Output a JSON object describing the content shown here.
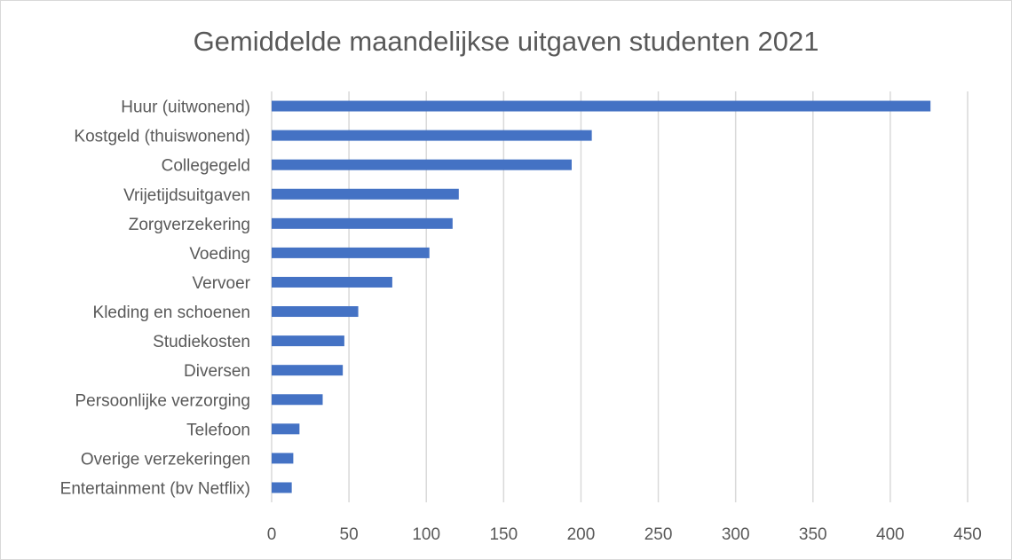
{
  "chart_data": {
    "type": "bar",
    "orientation": "horizontal",
    "title": "Gemiddelde maandelijkse uitgaven studenten 2021",
    "categories": [
      "Huur (uitwonend)",
      "Kostgeld (thuiswonend)",
      "Collegegeld",
      "Vrijetijdsuitgaven",
      "Zorgverzekering",
      "Voeding",
      "Vervoer",
      "Kleding en schoenen",
      "Studiekosten",
      "Diversen",
      "Persoonlijke verzorging",
      "Telefoon",
      "Overige verzekeringen",
      "Entertainment (bv Netflix)"
    ],
    "values": [
      426,
      207,
      194,
      121,
      117,
      102,
      78,
      56,
      47,
      46,
      33,
      18,
      14,
      13
    ],
    "xlim": [
      0,
      450
    ],
    "xticks": [
      "0",
      "50",
      "100",
      "150",
      "200",
      "250",
      "300",
      "350",
      "400",
      "450"
    ],
    "xlabel": "",
    "ylabel": "",
    "grid": true,
    "bar_color": "#4472C4"
  }
}
